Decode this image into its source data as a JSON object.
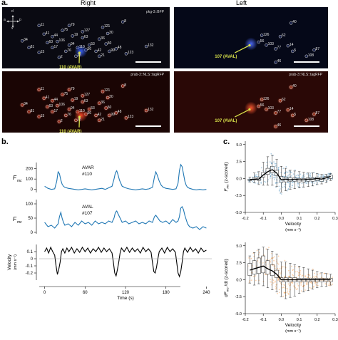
{
  "panels": {
    "a_letter": "a.",
    "b_letter": "b.",
    "c_letter": "c.",
    "right_title": "Right",
    "left_title": "Left",
    "orient": {
      "d": "d",
      "v": "v",
      "a": "a",
      "p": "p"
    }
  },
  "images": {
    "tl_label": "pkg-3::BFP",
    "bl_label": "prab-3::NLS::tagRFP",
    "tr_label": "prab-3::NLS::tagRFP",
    "br_label": "prab-3::NLS::tagRFP",
    "right_neuron": "110 (AVAR)",
    "left_neuron": "107 (AVAL)",
    "right_cells": [
      "11",
      "79",
      "75",
      "127",
      "121",
      "8",
      "34",
      "81",
      "19",
      "63",
      "15",
      "106",
      "94",
      "53",
      "36",
      "50",
      "48",
      "123",
      "132",
      "44",
      "76",
      "23",
      "2",
      "17",
      "42",
      "56",
      "30",
      "110",
      "21",
      "99",
      "63",
      "41"
    ],
    "left_cells": [
      "40",
      "126",
      "62",
      "56",
      "103",
      "14",
      "77",
      "5",
      "108",
      "87",
      "46"
    ],
    "colors": {
      "tl_bg": "#0a0a12",
      "tl_glow": "#3a63ff",
      "tr_bg": "#050818",
      "tr_glow": "#4f6cff",
      "bl_bg": "#1a0504",
      "bl_glow": "#ff4a2a",
      "br_bg": "#2a0806",
      "br_glow": "#ff5a30",
      "arrow": "#d9e24a"
    }
  },
  "chart_data": [
    {
      "type": "line",
      "id": "avar_trace",
      "title": "",
      "annotation": [
        "AVAR",
        "#110"
      ],
      "ylabel_main": "F",
      "ylabel_sub": "mc",
      "color": "#1f77b4",
      "ylim": [
        -30,
        260
      ],
      "yticks": [
        0,
        100,
        200
      ],
      "x": [
        0,
        5,
        10,
        15,
        18,
        20,
        22,
        24,
        26,
        28,
        30,
        35,
        40,
        45,
        50,
        55,
        60,
        65,
        70,
        75,
        80,
        85,
        90,
        95,
        100,
        103,
        105,
        107,
        109,
        111,
        113,
        115,
        120,
        125,
        130,
        135,
        140,
        145,
        150,
        155,
        160,
        163,
        165,
        167,
        170,
        173,
        176,
        180,
        185,
        190,
        195,
        198,
        200,
        202,
        204,
        206,
        208,
        210,
        212,
        215,
        220,
        225,
        230,
        235,
        240
      ],
      "y": [
        30,
        10,
        0,
        5,
        80,
        170,
        150,
        90,
        50,
        30,
        20,
        10,
        5,
        0,
        -5,
        0,
        5,
        0,
        -5,
        0,
        5,
        10,
        0,
        15,
        30,
        100,
        160,
        180,
        140,
        90,
        60,
        30,
        15,
        5,
        0,
        -5,
        0,
        5,
        0,
        5,
        20,
        120,
        170,
        140,
        80,
        40,
        20,
        10,
        5,
        0,
        5,
        60,
        180,
        240,
        220,
        150,
        80,
        40,
        20,
        10,
        0,
        -5,
        0,
        -5,
        0
      ]
    },
    {
      "type": "line",
      "id": "aval_trace",
      "title": "",
      "annotation": [
        "AVAL",
        "#107"
      ],
      "ylabel_main": "F",
      "ylabel_sub": "mc",
      "color": "#1f77b4",
      "ylim": [
        -5,
        115
      ],
      "yticks": [
        0,
        50,
        100
      ],
      "x": [
        0,
        5,
        10,
        15,
        20,
        22,
        24,
        26,
        28,
        30,
        35,
        40,
        45,
        50,
        55,
        60,
        65,
        70,
        75,
        80,
        85,
        90,
        95,
        100,
        103,
        105,
        107,
        110,
        113,
        115,
        120,
        125,
        130,
        135,
        140,
        145,
        150,
        155,
        160,
        163,
        165,
        168,
        171,
        175,
        180,
        185,
        190,
        195,
        198,
        200,
        202,
        204,
        206,
        208,
        210,
        212,
        215,
        220,
        225,
        230,
        235,
        240
      ],
      "y": [
        35,
        20,
        25,
        15,
        30,
        55,
        70,
        50,
        35,
        25,
        30,
        20,
        35,
        25,
        40,
        30,
        35,
        25,
        40,
        30,
        35,
        30,
        40,
        35,
        50,
        70,
        75,
        60,
        45,
        35,
        40,
        30,
        35,
        40,
        30,
        35,
        30,
        40,
        35,
        55,
        60,
        50,
        40,
        35,
        40,
        30,
        45,
        35,
        40,
        55,
        85,
        90,
        80,
        60,
        45,
        30,
        20,
        15,
        20,
        10,
        20,
        15
      ]
    },
    {
      "type": "line",
      "id": "velocity_trace",
      "title": "",
      "ylabel": "Velocity",
      "yunit": "(mm s⁻¹)",
      "xlabel": "Time (s)",
      "color": "#000000",
      "ylim": [
        -0.3,
        0.2
      ],
      "yticks": [
        -0.2,
        -0.1,
        0.0,
        0.1
      ],
      "xticks": [
        0,
        60,
        120,
        180,
        240
      ],
      "xlim": [
        -8,
        248
      ],
      "x": [
        0,
        3,
        6,
        9,
        12,
        15,
        17,
        19,
        21,
        23,
        25,
        27,
        30,
        33,
        36,
        40,
        44,
        48,
        52,
        56,
        60,
        64,
        68,
        72,
        76,
        80,
        84,
        88,
        92,
        96,
        100,
        102,
        104,
        106,
        108,
        110,
        112,
        114,
        118,
        122,
        126,
        130,
        134,
        138,
        142,
        146,
        150,
        154,
        158,
        160,
        162,
        164,
        166,
        168,
        170,
        174,
        178,
        182,
        186,
        190,
        194,
        196,
        198,
        200,
        202,
        204,
        206,
        208,
        212,
        216,
        220,
        224,
        228,
        232,
        236,
        240
      ],
      "y": [
        0.1,
        0.15,
        0.08,
        0.16,
        0.1,
        0.05,
        -0.1,
        -0.22,
        -0.15,
        -0.05,
        0.1,
        0.14,
        0.08,
        0.15,
        0.1,
        0.16,
        0.08,
        0.14,
        0.09,
        0.16,
        0.1,
        0.15,
        0.08,
        0.14,
        0.1,
        0.16,
        0.09,
        0.15,
        0.1,
        0.14,
        0.08,
        -0.05,
        -0.2,
        -0.24,
        -0.15,
        -0.05,
        0.08,
        0.15,
        0.1,
        0.16,
        0.09,
        0.15,
        0.1,
        0.14,
        0.08,
        0.16,
        0.1,
        0.14,
        0.09,
        -0.05,
        -0.18,
        -0.2,
        -0.12,
        0.0,
        0.1,
        0.15,
        0.08,
        0.16,
        0.1,
        0.14,
        0.09,
        -0.05,
        -0.2,
        -0.25,
        -0.18,
        -0.05,
        0.1,
        0.15,
        0.09,
        0.16,
        0.1,
        0.14,
        0.08,
        0.15,
        0.1,
        0.12
      ]
    },
    {
      "type": "box",
      "id": "fmc_vs_velocity",
      "ylabel_main": "F",
      "ylabel_sub": "mc",
      "ylabel_rest": "(z-scored)",
      "xlabel": "Velocity",
      "xunit": "(mm s⁻¹)",
      "color": "#1f77b4",
      "xlim": [
        -0.2,
        0.3
      ],
      "ylim": [
        -5.0,
        5.5
      ],
      "xticks": [
        -0.2,
        -0.1,
        0.0,
        0.1,
        0.2,
        0.3
      ],
      "yticks": [
        -5.0,
        -2.5,
        0.0,
        2.5,
        5.0
      ],
      "bins": [
        -0.175,
        -0.15,
        -0.125,
        -0.1,
        -0.075,
        -0.05,
        -0.025,
        0.0,
        0.025,
        0.05,
        0.075,
        0.1,
        0.125,
        0.15,
        0.175,
        0.2,
        0.225,
        0.25,
        0.275
      ],
      "q1": [
        -0.3,
        -0.2,
        -0.3,
        0.2,
        0.6,
        0.9,
        0.4,
        -0.6,
        -0.5,
        -0.4,
        -0.4,
        -0.5,
        -0.5,
        -0.4,
        -0.4,
        -0.3,
        -0.4,
        -0.2,
        0.0
      ],
      "median": [
        -0.2,
        -0.1,
        -0.1,
        0.5,
        1.0,
        1.3,
        0.8,
        -0.2,
        -0.1,
        -0.2,
        -0.1,
        -0.2,
        -0.2,
        -0.1,
        -0.1,
        0.0,
        -0.1,
        0.1,
        0.3
      ],
      "q3": [
        -0.1,
        0.1,
        0.2,
        0.9,
        1.5,
        1.8,
        1.2,
        0.3,
        0.2,
        0.1,
        0.1,
        0.0,
        0.0,
        0.1,
        0.1,
        0.2,
        0.1,
        0.3,
        0.5
      ],
      "whisker_low": [
        -0.5,
        -0.6,
        -0.9,
        -1.0,
        -1.0,
        -1.0,
        -1.2,
        -2.0,
        -1.8,
        -1.6,
        -1.5,
        -1.4,
        -1.3,
        -1.2,
        -1.1,
        -0.9,
        -0.8,
        -0.6,
        -0.3
      ],
      "whisker_high": [
        0.2,
        0.8,
        1.0,
        2.4,
        3.2,
        3.4,
        2.8,
        1.8,
        1.5,
        1.2,
        1.1,
        1.0,
        0.9,
        0.8,
        0.8,
        0.7,
        0.6,
        0.6,
        0.7
      ]
    },
    {
      "type": "box",
      "id": "dfmc_vs_velocity",
      "ylabel_main": "dF",
      "ylabel_sub": "mc",
      "ylabel_rest": "/dt (z-scored)",
      "xlabel": "Velocity",
      "xunit": "(mm s⁻¹)",
      "color": "#ff7f0e",
      "xlim": [
        -0.2,
        0.3
      ],
      "ylim": [
        -5.0,
        5.5
      ],
      "xticks": [
        -0.2,
        -0.1,
        0.0,
        0.1,
        0.2,
        0.3
      ],
      "yticks": [
        -5.0,
        -2.5,
        0.0,
        2.5,
        5.0
      ],
      "bins": [
        -0.175,
        -0.15,
        -0.125,
        -0.1,
        -0.075,
        -0.05,
        -0.025,
        0.0,
        0.025,
        0.05,
        0.075,
        0.1,
        0.125,
        0.15,
        0.175,
        0.2,
        0.225,
        0.25,
        0.275
      ],
      "q1": [
        0.6,
        0.8,
        0.9,
        1.0,
        0.8,
        0.6,
        0.3,
        -0.3,
        -0.3,
        -0.3,
        -0.3,
        -0.3,
        -0.3,
        -0.3,
        -0.3,
        -0.3,
        -0.3,
        -0.3,
        -0.3
      ],
      "median": [
        1.4,
        1.6,
        1.8,
        2.0,
        1.6,
        1.3,
        0.8,
        0.0,
        0.0,
        0.0,
        0.0,
        0.0,
        0.0,
        0.0,
        0.0,
        0.0,
        0.0,
        0.0,
        0.0
      ],
      "q3": [
        2.4,
        2.8,
        3.2,
        3.5,
        2.8,
        2.2,
        1.4,
        0.3,
        0.3,
        0.3,
        0.3,
        0.2,
        0.2,
        0.2,
        0.2,
        0.2,
        0.2,
        0.2,
        0.2
      ],
      "whisker_low": [
        -0.5,
        -0.8,
        -0.6,
        -0.9,
        -1.2,
        -1.5,
        -1.8,
        -2.5,
        -2.8,
        -2.6,
        -2.4,
        -2.0,
        -1.8,
        -1.6,
        -1.4,
        -1.2,
        -1.0,
        -1.0,
        -0.8
      ],
      "whisker_high": [
        3.5,
        4.0,
        4.5,
        4.8,
        4.5,
        4.2,
        3.8,
        2.6,
        2.6,
        2.4,
        2.2,
        2.0,
        1.8,
        1.6,
        1.4,
        1.2,
        1.0,
        0.9,
        0.8
      ]
    }
  ]
}
